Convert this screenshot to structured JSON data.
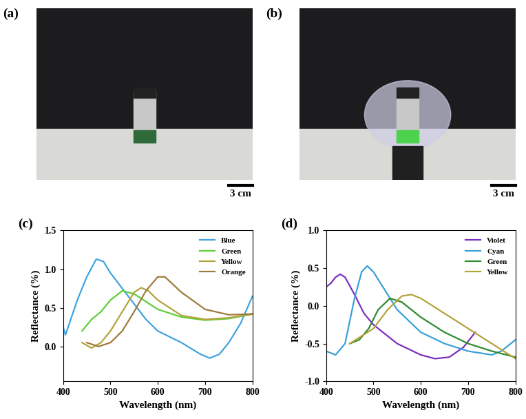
{
  "photos": [
    {
      "label": "(a)",
      "scale_bar": "3 cm"
    },
    {
      "label": "(b)",
      "scale_bar": "3 cm"
    }
  ],
  "chart_data": [
    {
      "type": "line",
      "title": "(c)",
      "x_label": "Wavelength (nm)",
      "y_label": "Reflectance (%)",
      "xlim": [
        400,
        800
      ],
      "xticks": [
        400,
        500,
        600,
        700,
        800
      ],
      "ylim": [
        -0.45,
        1.5
      ],
      "yticks": [
        {
          "value": 0.0,
          "label": "0.0"
        },
        {
          "value": 0.5,
          "label": "0.5"
        },
        {
          "value": 1.0,
          "label": "1.0"
        },
        {
          "value": 1.5,
          "label": "1.5"
        }
      ],
      "legend": "upper right",
      "series": [
        {
          "name": "Blue",
          "color": "#3fa4e0",
          "x": [
            400,
            405,
            430,
            450,
            470,
            485,
            500,
            525,
            550,
            575,
            600,
            650,
            690,
            710,
            730,
            750,
            775,
            800
          ],
          "values": [
            0.25,
            0.15,
            0.6,
            0.9,
            1.13,
            1.1,
            0.95,
            0.75,
            0.55,
            0.35,
            0.2,
            0.05,
            -0.1,
            -0.15,
            -0.1,
            0.05,
            0.3,
            0.65
          ]
        },
        {
          "name": "Green",
          "color": "#5fcf3a",
          "x": [
            440,
            460,
            480,
            500,
            525,
            550,
            575,
            600,
            650,
            700,
            750,
            800
          ],
          "values": [
            0.2,
            0.35,
            0.45,
            0.6,
            0.72,
            0.68,
            0.58,
            0.48,
            0.38,
            0.34,
            0.36,
            0.42
          ]
        },
        {
          "name": "Yellow",
          "color": "#b3a33c",
          "x": [
            440,
            460,
            480,
            500,
            525,
            550,
            565,
            580,
            600,
            650,
            700,
            750,
            800
          ],
          "values": [
            0.05,
            -0.02,
            0.05,
            0.2,
            0.45,
            0.7,
            0.76,
            0.72,
            0.6,
            0.4,
            0.35,
            0.37,
            0.42
          ]
        },
        {
          "name": "Orange",
          "color": "#a07a3c",
          "x": [
            450,
            475,
            500,
            525,
            550,
            575,
            600,
            615,
            650,
            700,
            750,
            800
          ],
          "values": [
            0.05,
            0.0,
            0.05,
            0.2,
            0.45,
            0.72,
            0.9,
            0.9,
            0.7,
            0.48,
            0.41,
            0.42
          ]
        }
      ]
    },
    {
      "type": "line",
      "title": "(d)",
      "x_label": "Wavelength (nm)",
      "y_label": "Reflectance (%)",
      "xlim": [
        400,
        800
      ],
      "xticks": [
        400,
        500,
        600,
        700,
        800
      ],
      "ylim": [
        -1.0,
        1.0
      ],
      "yticks": [
        {
          "value": -1.0,
          "label": "-1.0"
        },
        {
          "value": -0.5,
          "label": "-0.5"
        },
        {
          "value": 0.0,
          "label": "0.0"
        },
        {
          "value": 0.5,
          "label": "0.5"
        },
        {
          "value": 1.0,
          "label": "1.0"
        }
      ],
      "legend": "upper right",
      "series": [
        {
          "name": "Violet",
          "color": "#7b2fbf",
          "x": [
            400,
            410,
            420,
            430,
            440,
            460,
            480,
            500,
            550,
            600,
            630,
            660,
            690,
            715
          ],
          "values": [
            0.25,
            0.3,
            0.38,
            0.42,
            0.38,
            0.15,
            -0.1,
            -0.25,
            -0.5,
            -0.65,
            -0.7,
            -0.68,
            -0.55,
            -0.35
          ]
        },
        {
          "name": "Cyan",
          "color": "#3aa0d8",
          "x": [
            400,
            420,
            440,
            460,
            475,
            487,
            500,
            525,
            550,
            600,
            650,
            700,
            750,
            770,
            790,
            800
          ],
          "values": [
            -0.6,
            -0.65,
            -0.5,
            0.1,
            0.45,
            0.53,
            0.45,
            0.2,
            -0.05,
            -0.35,
            -0.5,
            -0.6,
            -0.65,
            -0.6,
            -0.5,
            -0.45
          ]
        },
        {
          "name": "Green",
          "color": "#2e8b2e",
          "x": [
            450,
            470,
            490,
            510,
            535,
            560,
            600,
            650,
            700,
            750,
            800
          ],
          "values": [
            -0.5,
            -0.45,
            -0.3,
            -0.05,
            0.1,
            0.05,
            -0.15,
            -0.35,
            -0.5,
            -0.6,
            -0.68
          ]
        },
        {
          "name": "Yellow",
          "color": "#b3a33c",
          "x": [
            450,
            480,
            500,
            530,
            560,
            580,
            600,
            650,
            700,
            750,
            800
          ],
          "values": [
            -0.5,
            -0.38,
            -0.3,
            -0.05,
            0.13,
            0.15,
            0.1,
            -0.1,
            -0.3,
            -0.5,
            -0.7
          ]
        }
      ]
    }
  ]
}
